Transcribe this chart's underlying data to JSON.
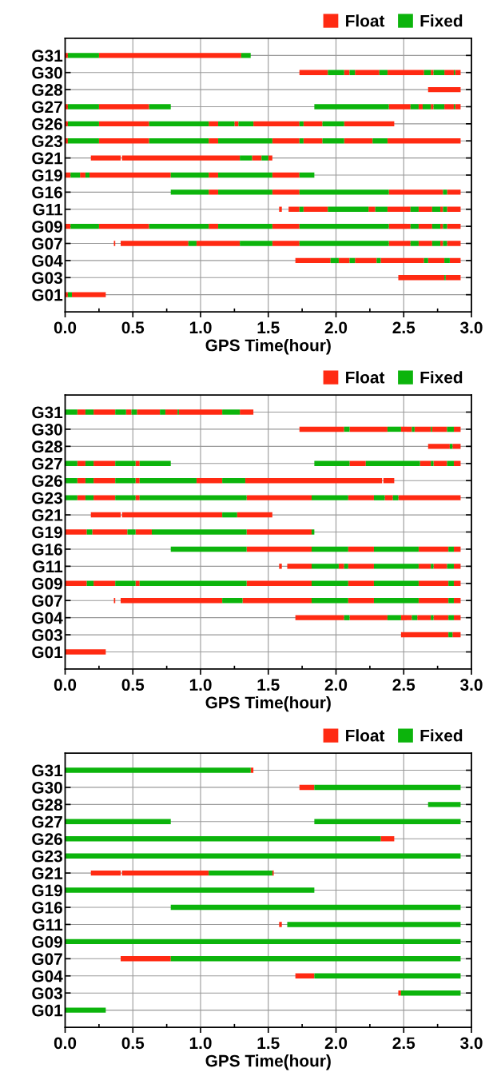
{
  "chart_data": [
    {
      "type": "bar",
      "orientation": "horizontal",
      "xlabel": "GPS Time(hour)",
      "categories": [
        "G31",
        "G30",
        "G28",
        "G27",
        "G26",
        "G23",
        "G21",
        "G19",
        "G16",
        "G11",
        "G09",
        "G07",
        "G04",
        "G03",
        "G01"
      ],
      "xlim": [
        0,
        3
      ],
      "xticks": [
        {
          "value": 0,
          "label": "0.0"
        },
        0.5,
        {
          "value": 1,
          "label": "1.0"
        },
        1.5,
        {
          "value": 2,
          "label": "2.0"
        },
        2.5,
        {
          "value": 3,
          "label": "3.0"
        }
      ],
      "grid": true,
      "legend": "top right",
      "series": [
        {
          "name": "Float",
          "color": "#ff2a12",
          "base": [
            0,
            1.73,
            2.68,
            0,
            0,
            0,
            0.19,
            0,
            1.06,
            1.58,
            0,
            0.36,
            1.7,
            2.46,
            0
          ],
          "values": [
            0.02,
            0.21,
            0.24,
            0.02,
            0.02,
            0.02,
            0.22,
            0.04,
            0.07,
            0.02,
            0.04,
            0.01,
            0.26,
            0.34,
            0.02
          ]
        },
        {
          "color": "#ff2a12",
          "base": [
            0.25,
            2.06,
            null,
            0.25,
            0.25,
            0.25,
            0.42,
            0.11,
            1.53,
            1.65,
            0.25,
            0.41,
            2.02,
            2.81,
            0.05
          ],
          "values": [
            1.05,
            0.04,
            null,
            0.37,
            0.37,
            0.37,
            0.87,
            0.04,
            0.2,
            0.08,
            0.37,
            0.5,
            0.08,
            0.11,
            0.25
          ]
        },
        {
          "color": "#ff2a12",
          "base": [
            null,
            2.14,
            null,
            2.39,
            1.06,
            1.06,
            1.38,
            0.18,
            2.39,
            1.76,
            1.06,
            0.97,
            2.14,
            null,
            null
          ],
          "values": [
            null,
            0.18,
            null,
            0.16,
            0.07,
            0.07,
            0.07,
            0.6,
            0.4,
            0.18,
            0.07,
            0.32,
            0.16,
            null,
            null
          ]
        },
        {
          "color": "#ff2a12",
          "base": [
            null,
            2.38,
            null,
            2.61,
            1.25,
            1.53,
            1.5,
            1.06,
            2.82,
            2.24,
            1.53,
            1.53,
            2.33,
            null,
            null
          ],
          "values": [
            null,
            0.27,
            null,
            0.03,
            0.03,
            0.2,
            0.03,
            0.07,
            0.1,
            0.05,
            0.2,
            0.2,
            0.32,
            null,
            null
          ]
        },
        {
          "color": "#ff2a12",
          "base": [
            null,
            2.7,
            null,
            2.7,
            1.39,
            1.76,
            null,
            1.53,
            null,
            2.38,
            2.39,
            2.39,
            2.68,
            null,
            null
          ],
          "values": [
            null,
            0.02,
            null,
            0.02,
            0.34,
            0.14,
            null,
            0.2,
            null,
            0.17,
            0.16,
            0.16,
            0.12,
            null,
            null
          ]
        },
        {
          "color": "#ff2a12",
          "base": [
            null,
            2.8,
            null,
            2.8,
            1.76,
            2.06,
            null,
            null,
            null,
            2.61,
            2.61,
            2.61,
            2.84,
            null,
            null
          ],
          "values": [
            null,
            0.07,
            null,
            0.07,
            0.14,
            0.21,
            null,
            null,
            null,
            0.1,
            0.1,
            0.1,
            0.08,
            null,
            null
          ]
        },
        {
          "color": "#ff2a12",
          "base": [
            null,
            2.88,
            null,
            2.88,
            2.06,
            2.38,
            null,
            null,
            null,
            2.77,
            2.77,
            2.77,
            null,
            null,
            null
          ],
          "values": [
            null,
            0.04,
            null,
            0.04,
            0.37,
            0.54,
            null,
            null,
            null,
            0.02,
            0.02,
            0.02,
            null,
            null,
            null
          ]
        },
        {
          "color": "#ff2a12",
          "base": [
            null,
            null,
            null,
            null,
            null,
            null,
            null,
            null,
            null,
            2.82,
            2.82,
            2.82,
            null,
            null,
            null
          ],
          "values": [
            null,
            null,
            null,
            null,
            null,
            null,
            null,
            null,
            null,
            0.1,
            0.1,
            0.1,
            null,
            null,
            null
          ]
        },
        {
          "name": "Fixed",
          "color": "#0cb40c",
          "base": [
            0.02,
            1.94,
            null,
            0.02,
            0.02,
            0.02,
            1.29,
            0.04,
            0.78,
            1.73,
            0.04,
            0.91,
            1.96,
            2.8,
            0.02
          ],
          "values": [
            0.23,
            0.12,
            null,
            0.23,
            0.23,
            0.23,
            0.09,
            0.07,
            0.28,
            0.03,
            0.21,
            0.06,
            0.06,
            0.01,
            0.03
          ]
        },
        {
          "color": "#0cb40c",
          "base": [
            1.3,
            2.1,
            null,
            0.62,
            0.62,
            0.62,
            1.45,
            0.15,
            1.13,
            1.94,
            0.62,
            1.29,
            2.1,
            null,
            null
          ],
          "values": [
            0.07,
            0.04,
            null,
            0.16,
            0.44,
            0.44,
            0.05,
            0.03,
            0.4,
            0.3,
            0.44,
            0.24,
            0.04,
            null,
            null
          ]
        },
        {
          "color": "#0cb40c",
          "base": [
            null,
            2.32,
            null,
            1.84,
            1.13,
            1.13,
            null,
            0.78,
            1.73,
            2.29,
            1.13,
            1.73,
            2.3,
            null,
            null
          ],
          "values": [
            null,
            0.06,
            null,
            0.55,
            0.12,
            0.4,
            null,
            0.28,
            0.66,
            0.09,
            0.4,
            0.66,
            0.03,
            null,
            null
          ]
        },
        {
          "color": "#0cb40c",
          "base": [
            null,
            2.65,
            null,
            2.55,
            1.28,
            1.73,
            null,
            1.13,
            2.79,
            2.55,
            1.73,
            2.55,
            2.65,
            null,
            null
          ],
          "values": [
            null,
            0.05,
            null,
            0.06,
            0.11,
            0.03,
            null,
            0.4,
            0.03,
            0.06,
            0.66,
            0.06,
            0.03,
            null,
            null
          ]
        },
        {
          "color": "#0cb40c",
          "base": [
            null,
            2.72,
            null,
            2.64,
            1.73,
            1.9,
            null,
            1.73,
            null,
            2.71,
            2.55,
            2.71,
            2.8,
            null,
            null
          ],
          "values": [
            null,
            0.08,
            null,
            0.06,
            0.03,
            0.16,
            null,
            0.11,
            null,
            0.06,
            0.06,
            0.06,
            0.04,
            null,
            null
          ]
        },
        {
          "color": "#0cb40c",
          "base": [
            null,
            2.87,
            null,
            2.72,
            1.9,
            2.27,
            null,
            null,
            null,
            2.79,
            2.71,
            2.79,
            null,
            null,
            null
          ],
          "values": [
            null,
            0.01,
            null,
            0.08,
            0.16,
            0.11,
            null,
            null,
            null,
            0.03,
            0.06,
            0.03,
            null,
            null,
            null
          ]
        },
        {
          "color": "#0cb40c",
          "base": [
            null,
            null,
            null,
            2.87,
            null,
            null,
            null,
            null,
            null,
            null,
            2.79,
            null,
            null,
            null,
            null
          ],
          "values": [
            null,
            null,
            null,
            0.01,
            null,
            null,
            null,
            null,
            null,
            null,
            0.03,
            null,
            null,
            null,
            null
          ]
        }
      ]
    },
    {
      "type": "bar",
      "orientation": "horizontal",
      "xlabel": "GPS Time(hour)",
      "categories": [
        "G31",
        "G30",
        "G28",
        "G27",
        "G26",
        "G23",
        "G21",
        "G19",
        "G16",
        "G11",
        "G09",
        "G07",
        "G04",
        "G03",
        "G01"
      ],
      "xlim": [
        0,
        3
      ],
      "xticks": [
        {
          "value": 0,
          "label": "0.0"
        },
        0.5,
        {
          "value": 1,
          "label": "1.0"
        },
        1.5,
        {
          "value": 2,
          "label": "2.0"
        },
        2.5,
        {
          "value": 3,
          "label": "3.0"
        }
      ],
      "grid": true,
      "legend": "top right",
      "series": [
        {
          "name": "Float",
          "color": "#ff2a12",
          "base": [
            0.09,
            1.73,
            2.68,
            0.09,
            0.09,
            0.09,
            0.19,
            0,
            1.34,
            1.58,
            0,
            0.36,
            1.7,
            2.48,
            0
          ],
          "values": [
            0.06,
            0.33,
            0.16,
            0.06,
            0.06,
            0.06,
            0.22,
            0.16,
            0.48,
            0.02,
            0.16,
            0.01,
            0.36,
            0.35,
            0.3
          ]
        },
        {
          "color": "#ff2a12",
          "base": [
            0.21,
            2.1,
            2.86,
            0.21,
            0.21,
            0.21,
            0.42,
            0.2,
            2.09,
            1.64,
            0.21,
            0.41,
            2.1,
            2.86,
            null
          ],
          "values": [
            0.16,
            0.28,
            0.06,
            0.16,
            0.16,
            0.16,
            0.74,
            0.26,
            0.19,
            0.18,
            0.16,
            0.75,
            0.28,
            0.06,
            null
          ]
        },
        {
          "color": "#ff2a12",
          "base": [
            0.45,
            2.48,
            null,
            0.52,
            0.52,
            0.52,
            1.27,
            0.52,
            2.61,
            2.02,
            0.52,
            1.31,
            2.48,
            null,
            null
          ],
          "values": [
            0.04,
            0.08,
            null,
            0.03,
            0.03,
            0.03,
            0.26,
            0.12,
            0.22,
            0.04,
            0.03,
            0.51,
            0.08,
            null,
            null
          ]
        },
        {
          "color": "#ff2a12",
          "base": [
            0.53,
            2.58,
            null,
            2.1,
            0.97,
            1.34,
            null,
            1.34,
            2.87,
            2.09,
            1.34,
            2.09,
            2.6,
            null,
            null
          ],
          "values": [
            0.17,
            0.12,
            null,
            0.12,
            0.19,
            0.48,
            null,
            0.48,
            0.05,
            0.19,
            0.48,
            0.19,
            0.1,
            null,
            null
          ]
        },
        {
          "color": "#ff2a12",
          "base": [
            0.74,
            2.71,
            null,
            2.62,
            1.33,
            2.09,
            null,
            null,
            null,
            2.61,
            2.09,
            2.61,
            2.72,
            null,
            null
          ],
          "values": [
            0.09,
            0.11,
            null,
            0.08,
            1.01,
            0.19,
            null,
            null,
            null,
            0.09,
            0.19,
            0.22,
            0.11,
            null,
            null
          ]
        },
        {
          "color": "#ff2a12",
          "base": [
            0.84,
            2.87,
            null,
            2.72,
            2.35,
            2.36,
            null,
            null,
            null,
            2.72,
            2.61,
            2.87,
            2.87,
            null,
            null
          ],
          "values": [
            0.32,
            0.05,
            null,
            0.1,
            0.08,
            0.06,
            null,
            null,
            null,
            0.1,
            0.22,
            0.05,
            0.05,
            null,
            null
          ]
        },
        {
          "color": "#ff2a12",
          "base": [
            1.29,
            null,
            null,
            2.87,
            null,
            2.46,
            null,
            null,
            null,
            2.87,
            2.87,
            null,
            null,
            null,
            null
          ],
          "values": [
            0.1,
            null,
            null,
            0.05,
            null,
            0.46,
            null,
            null,
            null,
            0.05,
            0.05,
            null,
            null,
            null,
            null
          ]
        },
        {
          "name": "Fixed",
          "color": "#0cb40c",
          "base": [
            0,
            2.06,
            2.84,
            0,
            0,
            0,
            1.16,
            0.16,
            0.78,
            1.82,
            0.16,
            1.16,
            2.06,
            2.83,
            null
          ],
          "values": [
            0.09,
            0.04,
            0.02,
            0.09,
            0.09,
            0.09,
            0.11,
            0.04,
            0.56,
            0.2,
            0.05,
            0.15,
            0.04,
            0.03,
            null
          ]
        },
        {
          "color": "#0cb40c",
          "base": [
            0.15,
            2.38,
            null,
            0.15,
            0.15,
            0.15,
            null,
            0.46,
            1.82,
            2.06,
            0.37,
            1.82,
            2.38,
            null,
            null
          ],
          "values": [
            0.06,
            0.1,
            null,
            0.06,
            0.06,
            0.06,
            null,
            0.06,
            0.27,
            0.03,
            0.15,
            0.27,
            0.1,
            null,
            null
          ]
        },
        {
          "color": "#0cb40c",
          "base": [
            0.37,
            2.56,
            null,
            0.37,
            0.37,
            0.37,
            null,
            0.64,
            2.28,
            2.28,
            0.55,
            2.28,
            2.56,
            null,
            null
          ],
          "values": [
            0.08,
            0.02,
            null,
            0.15,
            0.15,
            0.15,
            null,
            0.7,
            0.33,
            0.33,
            0.79,
            0.33,
            0.04,
            null,
            null
          ]
        },
        {
          "color": "#0cb40c",
          "base": [
            0.49,
            2.7,
            null,
            0.55,
            0.55,
            0.55,
            null,
            1.82,
            2.83,
            2.7,
            1.82,
            2.83,
            2.7,
            null,
            null
          ],
          "values": [
            0.04,
            0.01,
            null,
            0.23,
            0.42,
            0.79,
            null,
            0.02,
            0.04,
            0.02,
            0.27,
            0.04,
            0.02,
            null,
            null
          ]
        },
        {
          "color": "#0cb40c",
          "base": [
            0.7,
            2.82,
            null,
            1.84,
            1.16,
            1.82,
            null,
            null,
            null,
            2.82,
            2.28,
            null,
            2.83,
            null,
            null
          ],
          "values": [
            0.04,
            0.05,
            null,
            0.26,
            0.17,
            0.27,
            null,
            null,
            null,
            0.05,
            0.33,
            null,
            0.04,
            null,
            null
          ]
        },
        {
          "color": "#0cb40c",
          "base": [
            0.83,
            null,
            null,
            2.22,
            null,
            2.28,
            null,
            null,
            null,
            null,
            2.83,
            null,
            null,
            null,
            null
          ],
          "values": [
            0.01,
            null,
            null,
            0.4,
            null,
            0.08,
            null,
            null,
            null,
            null,
            0.04,
            null,
            null,
            null,
            null
          ]
        },
        {
          "color": "#0cb40c",
          "base": [
            1.16,
            null,
            null,
            2.7,
            null,
            2.42,
            null,
            null,
            null,
            null,
            null,
            null,
            null,
            null,
            null
          ],
          "values": [
            0.13,
            null,
            null,
            0.02,
            null,
            0.04,
            null,
            null,
            null,
            null,
            null,
            null,
            null,
            null,
            null
          ]
        },
        {
          "color": "#0cb40c",
          "base": [
            null,
            null,
            null,
            2.82,
            null,
            null,
            null,
            null,
            null,
            null,
            null,
            null,
            null,
            null,
            null
          ],
          "values": [
            null,
            null,
            null,
            0.05,
            null,
            null,
            null,
            null,
            null,
            null,
            null,
            null,
            null,
            null,
            null
          ]
        }
      ]
    },
    {
      "type": "bar",
      "orientation": "horizontal",
      "xlabel": "GPS Time(hour)",
      "categories": [
        "G31",
        "G30",
        "G28",
        "G27",
        "G26",
        "G23",
        "G21",
        "G19",
        "G16",
        "G11",
        "G09",
        "G07",
        "G04",
        "G03",
        "G01"
      ],
      "xlim": [
        0,
        3
      ],
      "xticks": [
        {
          "value": 0,
          "label": "0.0"
        },
        0.5,
        {
          "value": 1,
          "label": "1.0"
        },
        1.5,
        {
          "value": 2,
          "label": "2.0"
        },
        2.5,
        {
          "value": 3,
          "label": "3.0"
        }
      ],
      "grid": true,
      "legend": "top right",
      "series": [
        {
          "name": "Float",
          "color": "#ff2a12",
          "base": [
            1.37,
            1.73,
            null,
            null,
            2.33,
            null,
            0.19,
            null,
            null,
            1.58,
            null,
            0.41,
            1.7,
            2.46,
            null
          ],
          "values": [
            0.02,
            0.11,
            null,
            null,
            0.1,
            null,
            0.22,
            null,
            null,
            0.02,
            null,
            0.37,
            0.14,
            0.02,
            null
          ]
        },
        {
          "color": "#ff2a12",
          "base": [
            null,
            null,
            null,
            null,
            null,
            null,
            0.42,
            null,
            null,
            null,
            null,
            null,
            null,
            null,
            null
          ],
          "values": [
            null,
            null,
            null,
            null,
            null,
            null,
            0.64,
            null,
            null,
            null,
            null,
            null,
            null,
            null,
            null
          ]
        },
        {
          "color": "#ff2a12",
          "base": [
            null,
            null,
            null,
            null,
            null,
            null,
            1.53,
            null,
            null,
            null,
            null,
            null,
            null,
            null,
            null
          ],
          "values": [
            null,
            null,
            null,
            null,
            null,
            null,
            0.01,
            null,
            null,
            null,
            null,
            null,
            null,
            null,
            null
          ]
        },
        {
          "name": "Fixed",
          "color": "#0cb40c",
          "base": [
            0,
            1.84,
            2.68,
            0,
            0,
            0,
            1.06,
            0,
            0.78,
            1.64,
            0,
            0.78,
            1.84,
            2.48,
            0
          ],
          "values": [
            1.37,
            1.08,
            0.24,
            0.78,
            2.33,
            2.92,
            0.47,
            1.84,
            2.14,
            1.28,
            2.92,
            2.14,
            1.08,
            0.44,
            0.3
          ]
        },
        {
          "color": "#0cb40c",
          "base": [
            null,
            null,
            null,
            1.84,
            null,
            null,
            null,
            null,
            null,
            null,
            null,
            null,
            null,
            null,
            null
          ],
          "values": [
            null,
            null,
            null,
            1.08,
            null,
            null,
            null,
            null,
            null,
            null,
            null,
            null,
            null,
            null,
            null
          ]
        }
      ]
    }
  ]
}
